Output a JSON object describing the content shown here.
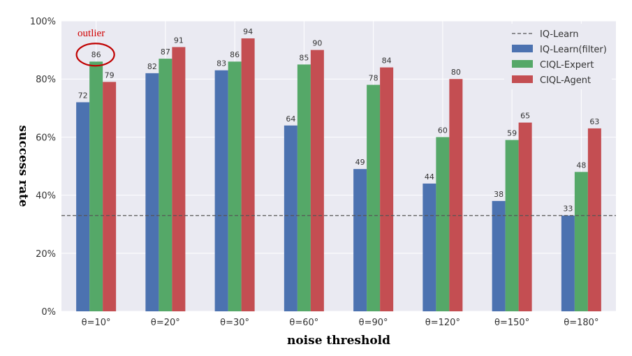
{
  "chart_data": {
    "type": "bar",
    "categories": [
      "θ=10°",
      "θ=20°",
      "θ=30°",
      "θ=60°",
      "θ=90°",
      "θ=120°",
      "θ=150°",
      "θ=180°"
    ],
    "series": [
      {
        "name": "IQ-Learn(filter)",
        "color": "#4c72b0",
        "values": [
          72,
          82,
          83,
          64,
          49,
          44,
          38,
          33
        ]
      },
      {
        "name": "CIQL-Expert",
        "color": "#55a868",
        "values": [
          86,
          87,
          86,
          85,
          78,
          60,
          59,
          48
        ]
      },
      {
        "name": "CIQL-Agent",
        "color": "#c44e52",
        "values": [
          79,
          91,
          94,
          90,
          84,
          80,
          65,
          63
        ]
      }
    ],
    "reference_line": {
      "name": "IQ-Learn",
      "value": 33,
      "style": "dashed",
      "color": "#555555"
    },
    "xlabel": "noise threshold",
    "ylabel": "success rate",
    "ylim": [
      0,
      100
    ],
    "yticks": [
      "0%",
      "20%",
      "40%",
      "60%",
      "80%",
      "100%"
    ],
    "grid": true,
    "legend_position": "top-right",
    "annotation": {
      "text": "outlier",
      "category_index": 0,
      "series_index": 1
    }
  }
}
